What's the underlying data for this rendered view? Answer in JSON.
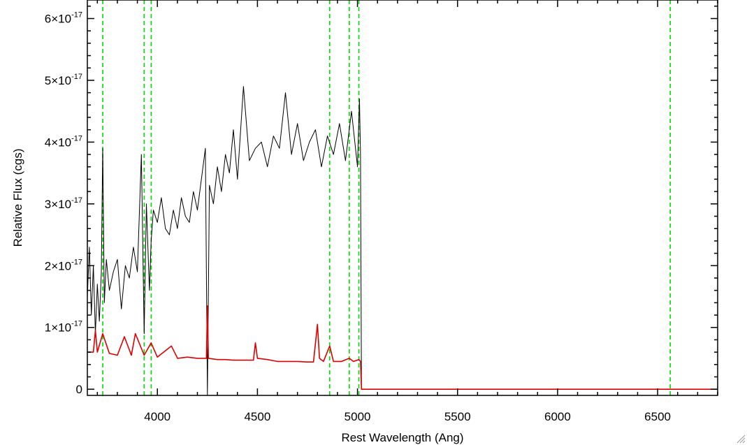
{
  "chart_data": {
    "type": "line",
    "title": "",
    "xlabel": "Rest Wavelength (Ang)",
    "ylabel": "Relative Flux (cgs)",
    "xlim": [
      3650,
      6800
    ],
    "ylim": [
      -1e-18,
      6.3e-17
    ],
    "x_ticks": [
      4000,
      4500,
      5000,
      5500,
      6000,
      6500
    ],
    "x_tick_labels": [
      "4000",
      "4500",
      "5000",
      "5500",
      "6000",
      "6500"
    ],
    "y_ticks": [
      0,
      1e-17,
      2e-17,
      3e-17,
      4e-17,
      5e-17,
      6e-17
    ],
    "y_tick_labels": [
      {
        "mantissa": "0",
        "exponent": ""
      },
      {
        "mantissa": "1×10",
        "exponent": "-17"
      },
      {
        "mantissa": "2×10",
        "exponent": "-17"
      },
      {
        "mantissa": "3×10",
        "exponent": "-17"
      },
      {
        "mantissa": "4×10",
        "exponent": "-17"
      },
      {
        "mantissa": "5×10",
        "exponent": "-17"
      },
      {
        "mantissa": "6×10",
        "exponent": "-17"
      }
    ],
    "grid": false,
    "vlines": {
      "color": "#00dd00",
      "style": "dashed",
      "x": [
        3727,
        3934,
        3969,
        4861,
        4959,
        5007,
        6563
      ]
    },
    "series": [
      {
        "color": "#000000",
        "x": [
          3650,
          3660,
          3670,
          3680,
          3690,
          3700,
          3710,
          3720,
          3727,
          3735,
          3745,
          3760,
          3780,
          3800,
          3820,
          3840,
          3860,
          3880,
          3900,
          3920,
          3934,
          3945,
          3960,
          3969,
          3980,
          4000,
          4020,
          4040,
          4060,
          4080,
          4100,
          4120,
          4140,
          4160,
          4180,
          4200,
          4220,
          4240,
          4250,
          4260,
          4280,
          4300,
          4320,
          4340,
          4360,
          4380,
          4400,
          4430,
          4460,
          4490,
          4520,
          4550,
          4580,
          4610,
          4640,
          4670,
          4700,
          4730,
          4760,
          4790,
          4820,
          4850,
          4880,
          4910,
          4940,
          4970,
          5000,
          5010,
          5015,
          5020
        ],
        "y": [
          1.5e-17,
          2.3e-17,
          1.2e-17,
          2e-17,
          9e-18,
          1.7e-17,
          1.1e-17,
          1.9e-17,
          3.9e-17,
          1.4e-17,
          2.1e-17,
          1.6e-17,
          1.9e-17,
          2.1e-17,
          1.3e-17,
          2e-17,
          1.8e-17,
          2.3e-17,
          1.9e-17,
          3.8e-17,
          9e-18,
          3e-17,
          1.6e-17,
          2.4e-17,
          2.9e-17,
          2.7e-17,
          3.1e-17,
          2.6e-17,
          2.5e-17,
          2.9e-17,
          2.6e-17,
          3.1e-17,
          2.8e-17,
          2.7e-17,
          3.2e-17,
          2.9e-17,
          3.4e-17,
          3.9e-17,
          -1e-18,
          3.3e-17,
          3e-17,
          3.6e-17,
          3.2e-17,
          3.8e-17,
          3.5e-17,
          4.2e-17,
          3.4e-17,
          4.9e-17,
          3.7e-17,
          3.9e-17,
          4e-17,
          3.6e-17,
          4.1e-17,
          3.9e-17,
          4.8e-17,
          3.8e-17,
          4.3e-17,
          3.7e-17,
          4e-17,
          4.2e-17,
          3.6e-17,
          4.1e-17,
          3.8e-17,
          4.3e-17,
          3.7e-17,
          4.5e-17,
          3.6e-17,
          4.7e-17,
          3.8e-17,
          0
        ]
      },
      {
        "color": "#dd0000",
        "x": [
          3650,
          3680,
          3690,
          3700,
          3727,
          3760,
          3800,
          3835,
          3870,
          3890,
          3934,
          3969,
          4000,
          4070,
          4101,
          4150,
          4200,
          4245,
          4250,
          4255,
          4300,
          4340,
          4380,
          4420,
          4480,
          4490,
          4500,
          4550,
          4600,
          4650,
          4700,
          4750,
          4780,
          4800,
          4810,
          4830,
          4861,
          4880,
          4920,
          4959,
          4980,
          5007,
          5015,
          5020,
          5100,
          6000,
          6800
        ],
        "y": [
          6e-18,
          6e-18,
          9.5e-18,
          6e-18,
          9e-18,
          5.8e-18,
          5.5e-18,
          8.5e-18,
          5.5e-18,
          9e-18,
          5.5e-18,
          7.5e-18,
          5.2e-18,
          7e-18,
          5e-18,
          5.2e-18,
          5e-18,
          5e-18,
          1.35e-17,
          5e-18,
          4.8e-18,
          4.8e-18,
          4.7e-18,
          4.7e-18,
          4.7e-18,
          7.5e-18,
          5e-18,
          4.8e-18,
          4.5e-18,
          4.5e-18,
          4.5e-18,
          4.4e-18,
          4.4e-18,
          1.05e-17,
          5e-18,
          4.5e-18,
          7e-18,
          4.5e-18,
          4.5e-18,
          5e-18,
          4.5e-18,
          4.8e-18,
          4.5e-18,
          0,
          0,
          0,
          0
        ]
      }
    ]
  }
}
